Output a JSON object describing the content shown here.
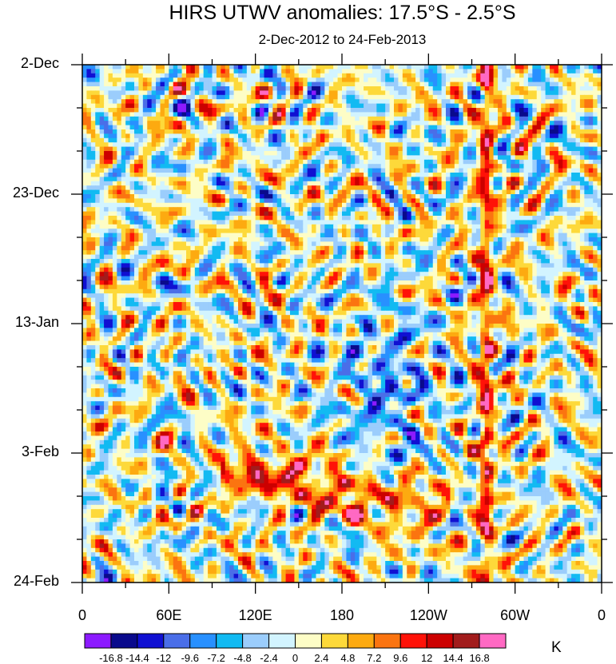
{
  "chart_data": {
    "type": "heatmap",
    "title": "HIRS UTWV anomalies: 17.5°S - 2.5°S",
    "subtitle": "2-Dec-2012 to 24-Feb-2013",
    "xlabel": "",
    "ylabel": "",
    "x_tick_labels": [
      "0",
      "60E",
      "120E",
      "180",
      "120W",
      "60W",
      "0"
    ],
    "x_tick_values_deg_east": [
      0,
      60,
      120,
      180,
      240,
      300,
      360
    ],
    "y_tick_labels": [
      "2-Dec",
      "23-Dec",
      "13-Jan",
      "3-Feb",
      "24-Feb"
    ],
    "y_tick_day_offsets": [
      0,
      21,
      42,
      63,
      84
    ],
    "units": "K",
    "colorbar_levels": [
      "-16.8",
      "-14.4",
      "-12",
      "-9.6",
      "-7.2",
      "-4.8",
      "-2.4",
      "0",
      "2.4",
      "4.8",
      "7.2",
      "9.6",
      "12",
      "14.4",
      "16.8"
    ],
    "colorbar_colors": [
      "#8c1aff",
      "#0a0a8c",
      "#1010d2",
      "#4a6ee8",
      "#2890ff",
      "#12baf2",
      "#9bcdfc",
      "#d2f4ff",
      "#fdfdc6",
      "#fdd93a",
      "#fdaa10",
      "#fb7410",
      "#ff1208",
      "#cc0000",
      "#a21c1c",
      "#ff69c3"
    ],
    "features": [
      {
        "name": "eastward-propagating warm anomaly band",
        "lon_start": 125,
        "day_start": 66,
        "lon_end": 225,
        "day_end": 72,
        "peak_K": 14
      },
      {
        "name": "stationary warm band near 80W",
        "lon_center": 280,
        "day_start": 0,
        "day_end": 84,
        "peak_K": 14
      },
      {
        "name": "dry anomaly region central Pacific",
        "lon_center": 210,
        "day_center": 52,
        "peak_K": -10
      }
    ]
  }
}
